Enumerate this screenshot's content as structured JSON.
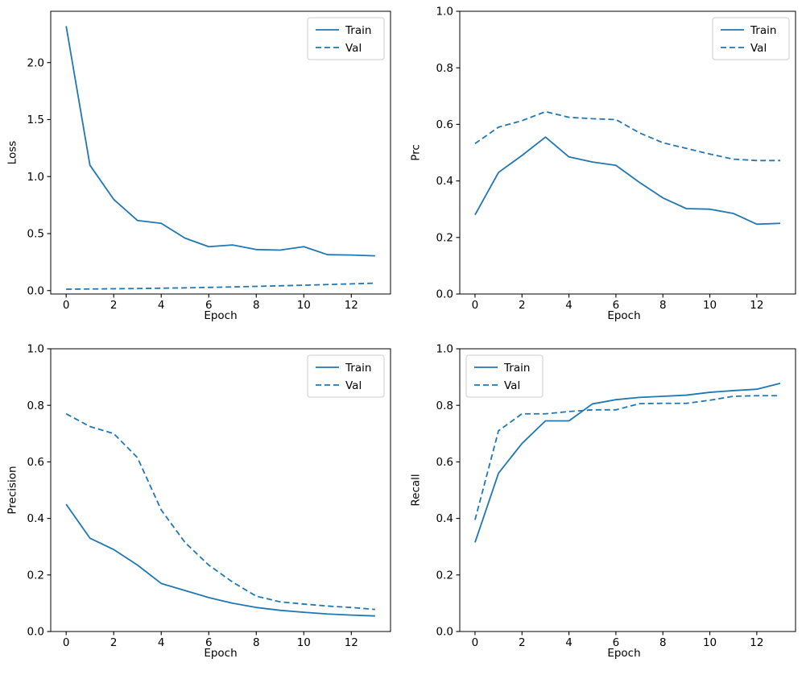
{
  "figure": {
    "background": "#ffffff",
    "accent_color": "#1f77b4",
    "spine_color": "#000000",
    "legend_border_color": "#cccccc"
  },
  "chart_data": [
    {
      "id": "loss",
      "type": "line",
      "title": "",
      "xlabel": "Epoch",
      "ylabel": "Loss",
      "x": [
        0,
        1,
        2,
        3,
        4,
        5,
        6,
        7,
        8,
        9,
        10,
        11,
        12,
        13
      ],
      "series": [
        {
          "name": "Train",
          "style": "solid",
          "values": [
            2.32,
            1.1,
            0.8,
            0.615,
            0.59,
            0.46,
            0.385,
            0.4,
            0.36,
            0.355,
            0.385,
            0.315,
            0.312,
            0.305
          ]
        },
        {
          "name": "Val",
          "style": "dashed",
          "values": [
            0.012,
            0.014,
            0.016,
            0.018,
            0.021,
            0.024,
            0.028,
            0.032,
            0.037,
            0.042,
            0.047,
            0.053,
            0.059,
            0.065
          ]
        }
      ],
      "xlim": [
        -0.65,
        13.65
      ],
      "ylim": [
        -0.03,
        2.45
      ],
      "xticks": [
        0,
        2,
        4,
        6,
        8,
        10,
        12
      ],
      "xtick_labels": [
        "0",
        "2",
        "4",
        "6",
        "8",
        "10",
        "12"
      ],
      "yticks": [
        0.0,
        0.5,
        1.0,
        1.5,
        2.0
      ],
      "ytick_labels": [
        "0.0",
        "0.5",
        "1.0",
        "1.5",
        "2.0"
      ],
      "grid": false,
      "legend_loc": "upper-right",
      "legend_entries": [
        "Train",
        "Val"
      ],
      "color": "#1f77b4"
    },
    {
      "id": "prc",
      "type": "line",
      "title": "",
      "xlabel": "Epoch",
      "ylabel": "Prc",
      "x": [
        0,
        1,
        2,
        3,
        4,
        5,
        6,
        7,
        8,
        9,
        10,
        11,
        12,
        13
      ],
      "series": [
        {
          "name": "Train",
          "style": "solid",
          "values": [
            0.28,
            0.43,
            0.49,
            0.555,
            0.485,
            0.467,
            0.455,
            0.395,
            0.34,
            0.302,
            0.3,
            0.285,
            0.247,
            0.25
          ]
        },
        {
          "name": "Val",
          "style": "dashed",
          "values": [
            0.532,
            0.59,
            0.613,
            0.645,
            0.625,
            0.62,
            0.617,
            0.57,
            0.535,
            0.515,
            0.495,
            0.477,
            0.472,
            0.472
          ]
        }
      ],
      "xlim": [
        -0.65,
        13.65
      ],
      "ylim": [
        0.0,
        1.0
      ],
      "xticks": [
        0,
        2,
        4,
        6,
        8,
        10,
        12
      ],
      "xtick_labels": [
        "0",
        "2",
        "4",
        "6",
        "8",
        "10",
        "12"
      ],
      "yticks": [
        0.0,
        0.2,
        0.4,
        0.6,
        0.8,
        1.0
      ],
      "ytick_labels": [
        "0.0",
        "0.2",
        "0.4",
        "0.6",
        "0.8",
        "1.0"
      ],
      "grid": false,
      "legend_loc": "upper-right",
      "legend_entries": [
        "Train",
        "Val"
      ],
      "color": "#1f77b4"
    },
    {
      "id": "precision",
      "type": "line",
      "title": "",
      "xlabel": "Epoch",
      "ylabel": "Precision",
      "x": [
        0,
        1,
        2,
        3,
        4,
        5,
        6,
        7,
        8,
        9,
        10,
        11,
        12,
        13
      ],
      "series": [
        {
          "name": "Train",
          "style": "solid",
          "values": [
            0.45,
            0.33,
            0.29,
            0.235,
            0.17,
            0.145,
            0.12,
            0.1,
            0.085,
            0.075,
            0.068,
            0.062,
            0.058,
            0.055
          ]
        },
        {
          "name": "Val",
          "style": "dashed",
          "values": [
            0.77,
            0.725,
            0.7,
            0.615,
            0.43,
            0.315,
            0.235,
            0.175,
            0.125,
            0.105,
            0.097,
            0.09,
            0.085,
            0.078
          ]
        }
      ],
      "xlim": [
        -0.65,
        13.65
      ],
      "ylim": [
        0.0,
        1.0
      ],
      "xticks": [
        0,
        2,
        4,
        6,
        8,
        10,
        12
      ],
      "xtick_labels": [
        "0",
        "2",
        "4",
        "6",
        "8",
        "10",
        "12"
      ],
      "yticks": [
        0.0,
        0.2,
        0.4,
        0.6,
        0.8,
        1.0
      ],
      "ytick_labels": [
        "0.0",
        "0.2",
        "0.4",
        "0.6",
        "0.8",
        "1.0"
      ],
      "grid": false,
      "legend_loc": "upper-right",
      "legend_entries": [
        "Train",
        "Val"
      ],
      "color": "#1f77b4"
    },
    {
      "id": "recall",
      "type": "line",
      "title": "",
      "xlabel": "Epoch",
      "ylabel": "Recall",
      "x": [
        0,
        1,
        2,
        3,
        4,
        5,
        6,
        7,
        8,
        9,
        10,
        11,
        12,
        13
      ],
      "series": [
        {
          "name": "Train",
          "style": "solid",
          "values": [
            0.315,
            0.56,
            0.665,
            0.745,
            0.745,
            0.805,
            0.82,
            0.828,
            0.832,
            0.836,
            0.846,
            0.852,
            0.857,
            0.878
          ]
        },
        {
          "name": "Val",
          "style": "dashed",
          "values": [
            0.395,
            0.71,
            0.77,
            0.77,
            0.778,
            0.784,
            0.784,
            0.806,
            0.807,
            0.807,
            0.818,
            0.832,
            0.834,
            0.834
          ]
        }
      ],
      "xlim": [
        -0.65,
        13.65
      ],
      "ylim": [
        0.0,
        1.0
      ],
      "xticks": [
        0,
        2,
        4,
        6,
        8,
        10,
        12
      ],
      "xtick_labels": [
        "0",
        "2",
        "4",
        "6",
        "8",
        "10",
        "12"
      ],
      "yticks": [
        0.0,
        0.2,
        0.4,
        0.6,
        0.8,
        1.0
      ],
      "ytick_labels": [
        "0.0",
        "0.2",
        "0.4",
        "0.6",
        "0.8",
        "1.0"
      ],
      "grid": false,
      "legend_loc": "upper-left",
      "legend_entries": [
        "Train",
        "Val"
      ],
      "color": "#1f77b4"
    }
  ]
}
